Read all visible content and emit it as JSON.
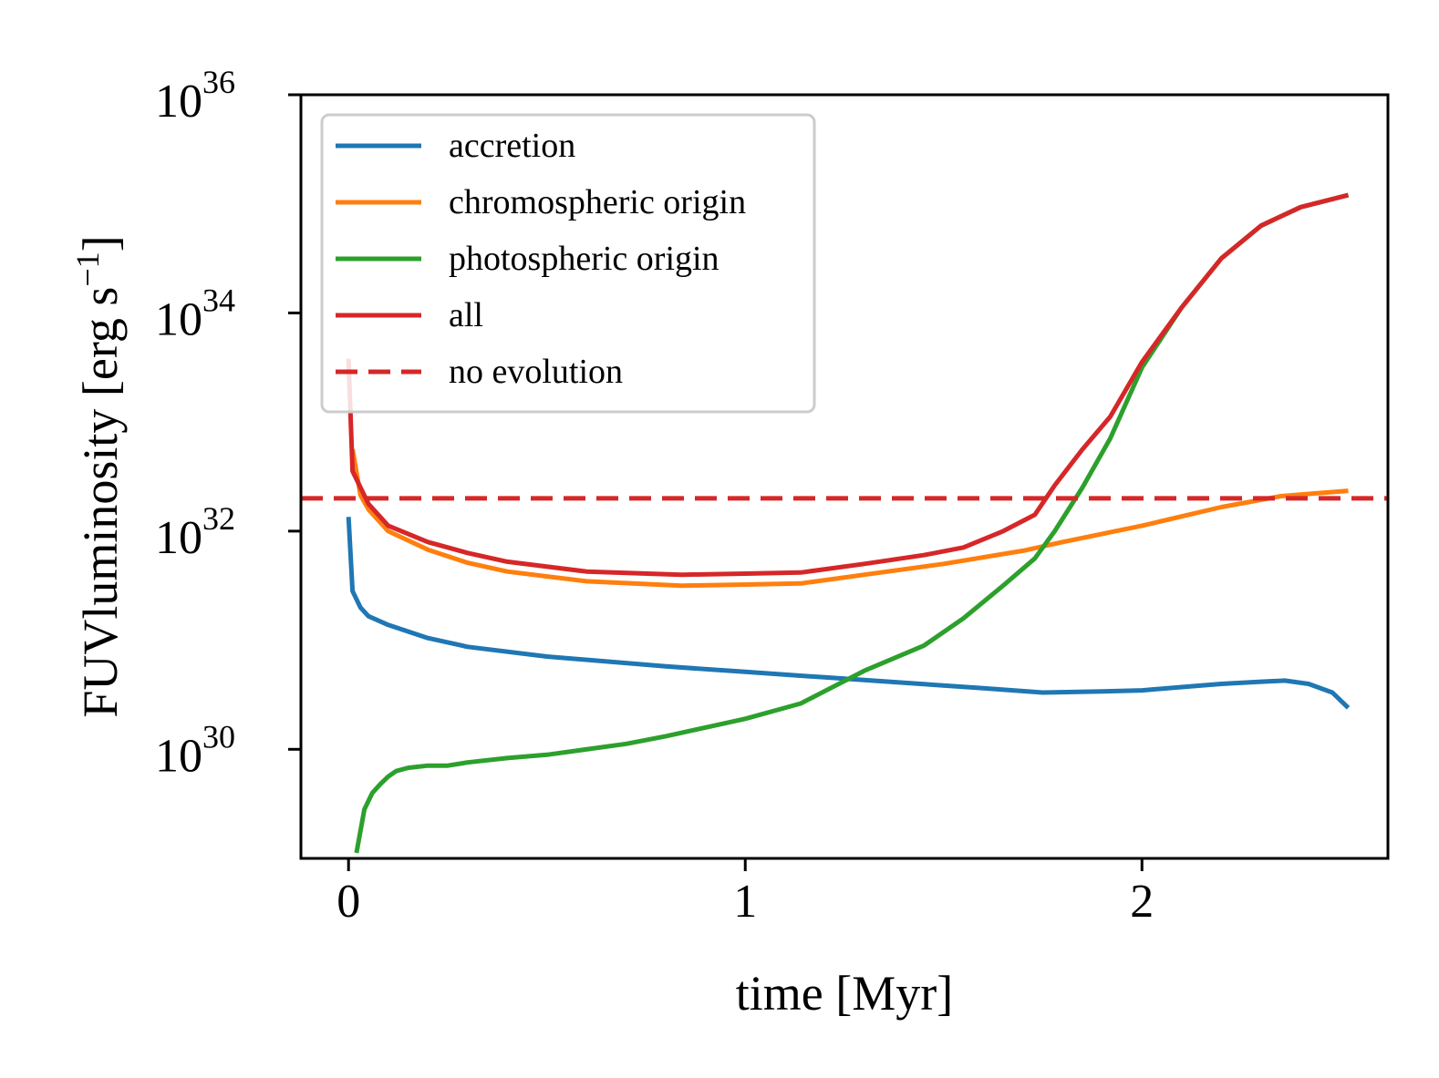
{
  "chart_data": {
    "type": "line",
    "xlabel": "time [Myr]",
    "ylabel": "FUVluminosity [erg s",
    "ylabel_unit_exp": "−1",
    "ylabel_close": "]",
    "yscale": "log",
    "xlim": [
      -0.12,
      2.62
    ],
    "ylim_log10": [
      29.0,
      36.0
    ],
    "xticks": [
      {
        "value": 0,
        "label": "0"
      },
      {
        "value": 1,
        "label": "1"
      },
      {
        "value": 2,
        "label": "2"
      }
    ],
    "yticks": [
      {
        "log10": 30,
        "base": "10",
        "exp": "30"
      },
      {
        "log10": 32,
        "base": "10",
        "exp": "32"
      },
      {
        "log10": 34,
        "base": "10",
        "exp": "34"
      },
      {
        "log10": 36,
        "base": "10",
        "exp": "36"
      }
    ],
    "legend_position": "top-left",
    "series": [
      {
        "name": "accretion",
        "color": "#1f77b4",
        "dash": false,
        "x": [
          0.0,
          0.01,
          0.03,
          0.05,
          0.1,
          0.2,
          0.3,
          0.5,
          0.8,
          1.0,
          1.2,
          1.4,
          1.6,
          1.75,
          1.9,
          2.0,
          2.1,
          2.2,
          2.3,
          2.36,
          2.42,
          2.48,
          2.52
        ],
        "log10_y": [
          32.13,
          31.45,
          31.3,
          31.22,
          31.14,
          31.02,
          30.94,
          30.85,
          30.76,
          30.71,
          30.66,
          30.61,
          30.56,
          30.52,
          30.53,
          30.54,
          30.57,
          30.6,
          30.62,
          30.63,
          30.6,
          30.52,
          30.38
        ]
      },
      {
        "name": "chromospheric origin",
        "color": "#ff7f0e",
        "dash": false,
        "x": [
          0.01,
          0.03,
          0.05,
          0.1,
          0.2,
          0.3,
          0.4,
          0.6,
          0.84,
          1.0,
          1.14,
          1.3,
          1.5,
          1.7,
          1.8,
          2.0,
          2.2,
          2.35,
          2.45,
          2.52
        ],
        "log10_y": [
          32.75,
          32.33,
          32.2,
          32.0,
          31.83,
          31.71,
          31.63,
          31.54,
          31.5,
          31.51,
          31.52,
          31.6,
          31.7,
          31.82,
          31.9,
          32.05,
          32.22,
          32.32,
          32.35,
          32.37
        ]
      },
      {
        "name": "photospheric origin",
        "color": "#2ca02c",
        "dash": false,
        "x": [
          0.02,
          0.04,
          0.06,
          0.08,
          0.1,
          0.12,
          0.15,
          0.2,
          0.25,
          0.3,
          0.4,
          0.5,
          0.7,
          0.8,
          1.0,
          1.14,
          1.3,
          1.45,
          1.55,
          1.65,
          1.73,
          1.78,
          1.85,
          1.92,
          2.0,
          2.1,
          2.2,
          2.3,
          2.4,
          2.52
        ],
        "log10_y": [
          29.05,
          29.45,
          29.6,
          29.68,
          29.75,
          29.8,
          29.83,
          29.85,
          29.85,
          29.88,
          29.92,
          29.95,
          30.05,
          30.12,
          30.28,
          30.42,
          30.72,
          30.95,
          31.2,
          31.5,
          31.75,
          32.0,
          32.4,
          32.85,
          33.5,
          34.05,
          34.5,
          34.8,
          34.97,
          35.08
        ]
      },
      {
        "name": "all",
        "color": "#d62728",
        "dash": false,
        "x": [
          0.0,
          0.01,
          0.03,
          0.05,
          0.1,
          0.2,
          0.3,
          0.4,
          0.6,
          0.84,
          1.0,
          1.14,
          1.3,
          1.45,
          1.55,
          1.65,
          1.73,
          1.78,
          1.85,
          1.92,
          2.0,
          2.1,
          2.2,
          2.3,
          2.4,
          2.52
        ],
        "log10_y": [
          33.58,
          32.55,
          32.4,
          32.25,
          32.05,
          31.9,
          31.8,
          31.72,
          31.63,
          31.6,
          31.61,
          31.62,
          31.7,
          31.78,
          31.85,
          32.0,
          32.15,
          32.42,
          32.75,
          33.05,
          33.55,
          34.05,
          34.5,
          34.8,
          34.97,
          35.08
        ]
      },
      {
        "name": "no evolution",
        "color": "#d62728",
        "dash": true,
        "x": [
          -0.12,
          2.62
        ],
        "log10_y": [
          32.3,
          32.3
        ]
      }
    ]
  }
}
